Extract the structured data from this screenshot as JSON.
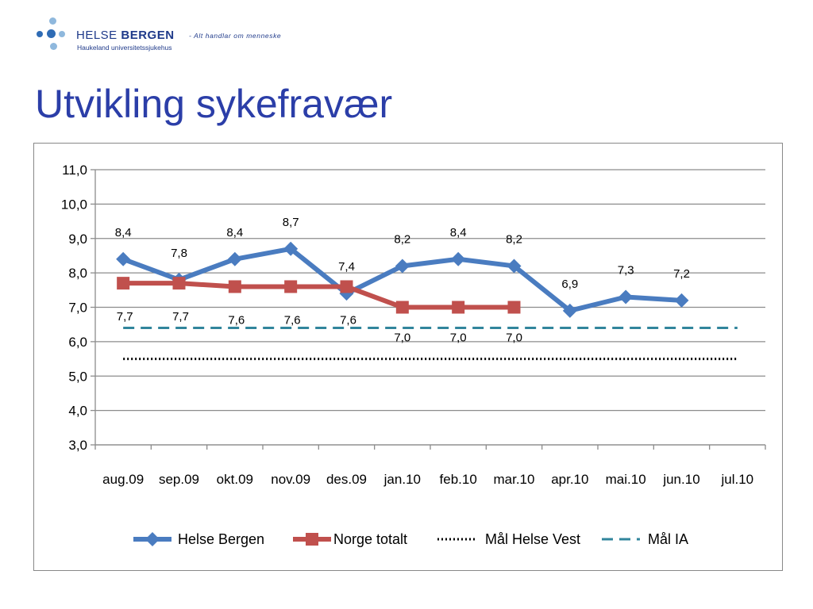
{
  "header": {
    "logo_name_regular": "HELSE ",
    "logo_name_bold": "BERGEN",
    "logo_tagline": "- Alt handlar om menneske",
    "logo_subtitle": "Haukeland universitetssjukehus",
    "page_title": "Utvikling sykefravær"
  },
  "colors": {
    "brand": "#2b3ea8",
    "logo_dot_light": "#8fb8dd",
    "logo_dot_dark": "#2f6cb5"
  },
  "chart_data": {
    "type": "line",
    "categories": [
      "aug.09",
      "sep.09",
      "okt.09",
      "nov.09",
      "des.09",
      "jan.10",
      "feb.10",
      "mar.10",
      "apr.10",
      "mai.10",
      "jun.10",
      "jul.10"
    ],
    "ylim": [
      3.0,
      11.0
    ],
    "yticks": [
      "3,0",
      "4,0",
      "5,0",
      "6,0",
      "7,0",
      "8,0",
      "9,0",
      "10,0",
      "11,0"
    ],
    "grid": true,
    "legend_position": "bottom",
    "series": [
      {
        "name": "Helse Bergen",
        "values": [
          8.4,
          7.8,
          8.4,
          8.7,
          7.4,
          8.2,
          8.4,
          8.2,
          6.9,
          7.3,
          7.2,
          null
        ],
        "labels": [
          "8,4",
          "7,8",
          "8,4",
          "8,7",
          "7,4",
          "8,2",
          "8,4",
          "8,2",
          "6,9",
          "7,3",
          "7,2",
          ""
        ],
        "color": "#4a7cc0",
        "marker": "diamond",
        "style": "solid"
      },
      {
        "name": "Norge totalt",
        "values": [
          7.7,
          7.7,
          7.6,
          7.6,
          7.6,
          7.0,
          7.0,
          7.0,
          null,
          null,
          null,
          null
        ],
        "labels": [
          "7,7",
          "7,7",
          "7,6",
          "7,6",
          "7,6",
          "7,0",
          "7,0",
          "7,0",
          "",
          "",
          "",
          ""
        ],
        "color": "#c0504d",
        "marker": "square",
        "style": "solid"
      },
      {
        "name": "Mål Helse Vest",
        "values": [
          5.5,
          5.5,
          5.5,
          5.5,
          5.5,
          5.5,
          5.5,
          5.5,
          5.5,
          5.5,
          5.5,
          5.5
        ],
        "color": "#000000",
        "marker": "none",
        "style": "dotted"
      },
      {
        "name": "Mål IA",
        "values": [
          6.4,
          6.4,
          6.4,
          6.4,
          6.4,
          6.4,
          6.4,
          6.4,
          6.4,
          6.4,
          6.4,
          6.4
        ],
        "color": "#31859c",
        "marker": "none",
        "style": "dashed"
      }
    ]
  }
}
